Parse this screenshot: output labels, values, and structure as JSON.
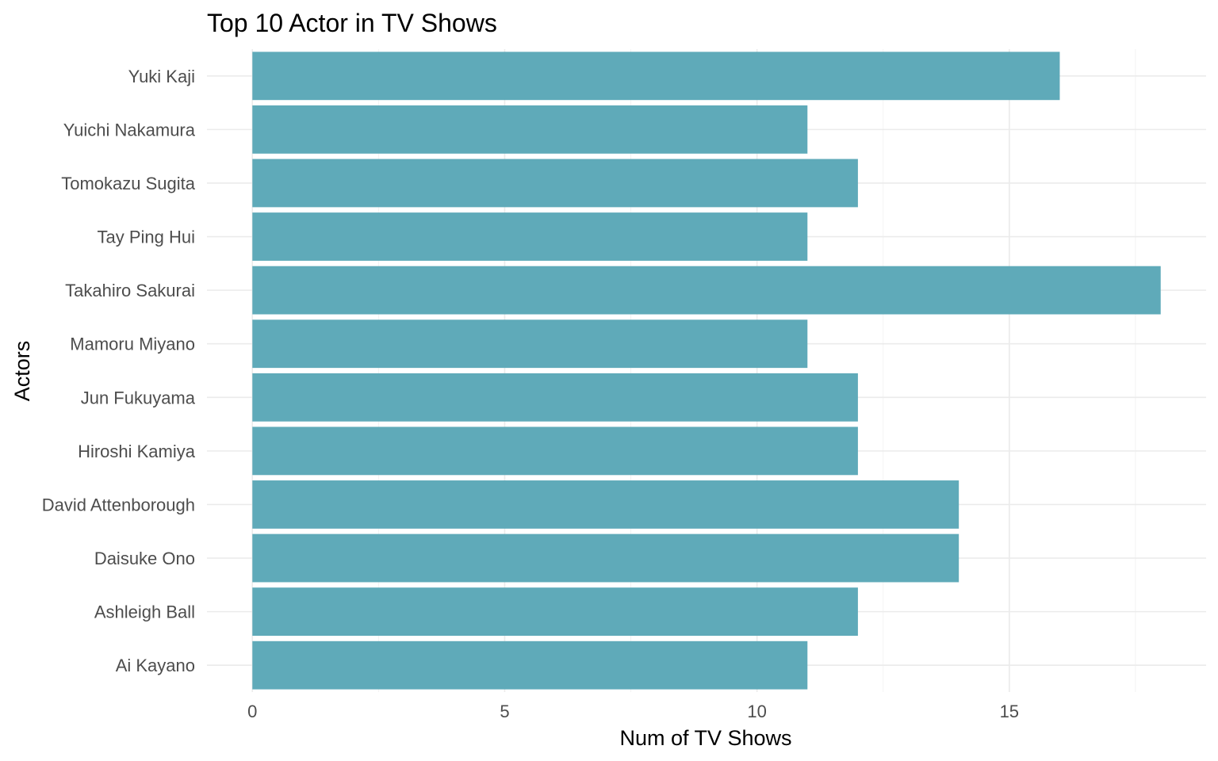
{
  "chart_data": {
    "type": "bar",
    "orientation": "horizontal",
    "title": "Top 10 Actor in TV Shows",
    "xlabel": "Num of TV Shows",
    "ylabel": "Actors",
    "categories": [
      "Ai Kayano",
      "Ashleigh Ball",
      "Daisuke Ono",
      "David Attenborough",
      "Hiroshi Kamiya",
      "Jun Fukuyama",
      "Mamoru Miyano",
      "Takahiro Sakurai",
      "Tay Ping Hui",
      "Tomokazu Sugita",
      "Yuichi Nakamura",
      "Yuki Kaji"
    ],
    "values": [
      11,
      12,
      14,
      14,
      12,
      12,
      11,
      18,
      11,
      12,
      11,
      16
    ],
    "xticks": [
      0,
      5,
      10,
      15
    ],
    "xtick_labels": [
      "0",
      "5",
      "10",
      "15"
    ],
    "xlim": [
      -0.9,
      18.9
    ],
    "bar_color": "#5FAAB9",
    "grid": true,
    "legend": "none"
  }
}
